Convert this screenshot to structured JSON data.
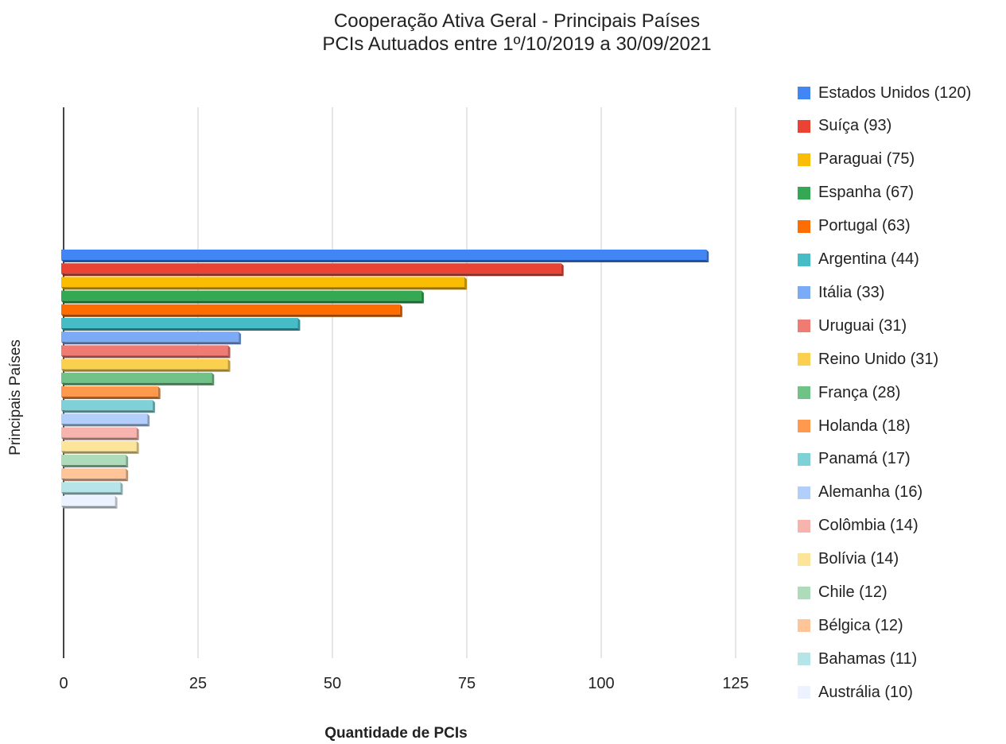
{
  "chart_data": {
    "type": "bar",
    "orientation": "horizontal",
    "title": [
      "Cooperação Ativa Geral - Principais Países",
      "PCIs Autuados entre 1º/10/2019 a 30/09/2021"
    ],
    "xlabel": "Quantidade de PCIs",
    "ylabel": "Principais Países",
    "xlim": [
      0,
      125
    ],
    "x_ticks": [
      "0",
      "25",
      "50",
      "75",
      "100",
      "125"
    ],
    "grid": true,
    "legend_position": "right",
    "categories": [
      "Estados Unidos (120)",
      "Suíça (93)",
      "Paraguai (75)",
      "Espanha (67)",
      "Portugal (63)",
      "Argentina (44)",
      "Itália (33)",
      "Uruguai (31)",
      "Reino Unido (31)",
      "França (28)",
      "Holanda (18)",
      "Panamá (17)",
      "Alemanha (16)",
      "Colômbia (14)",
      "Bolívia (14)",
      "Chile (12)",
      "Bélgica (12)",
      "Bahamas (11)",
      "Austrália (10)"
    ],
    "values": [
      120,
      93,
      75,
      67,
      63,
      44,
      33,
      31,
      31,
      28,
      18,
      17,
      16,
      14,
      14,
      12,
      12,
      11,
      10
    ],
    "colors": [
      "#4285f4",
      "#ea4335",
      "#fbbc04",
      "#34a853",
      "#ff6d01",
      "#46bdc6",
      "#7baaf7",
      "#f07b72",
      "#fcd04f",
      "#71c287",
      "#ff994d",
      "#7ed1d7",
      "#b3cefb",
      "#f7b4ae",
      "#fde49b",
      "#aedcba",
      "#ffc599",
      "#b5e5e8",
      "#ecf3fe"
    ]
  }
}
